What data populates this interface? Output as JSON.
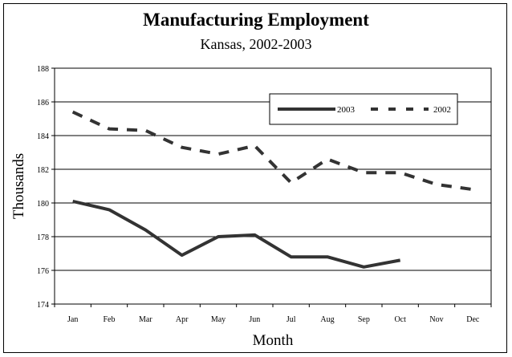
{
  "chart_data": {
    "type": "line",
    "title": "Manufacturing Employment",
    "subtitle": "Kansas, 2002-2003",
    "xlabel": "Month",
    "ylabel": "Thousands",
    "categories": [
      "Jan",
      "Feb",
      "Mar",
      "Apr",
      "May",
      "Jun",
      "Jul",
      "Aug",
      "Sep",
      "Oct",
      "Nov",
      "Dec"
    ],
    "ylim": [
      174,
      188
    ],
    "yticks": [
      174,
      176,
      178,
      180,
      182,
      184,
      186,
      188
    ],
    "grid": true,
    "legend_position": "top-right",
    "series": [
      {
        "name": "2003",
        "style": "solid",
        "color": "#333333",
        "values": [
          180.1,
          179.6,
          178.4,
          176.9,
          178.0,
          178.1,
          176.8,
          176.8,
          176.2,
          176.6,
          null,
          null
        ]
      },
      {
        "name": "2002",
        "style": "dashed",
        "color": "#333333",
        "values": [
          185.4,
          184.4,
          184.3,
          183.3,
          182.9,
          183.4,
          181.2,
          182.6,
          181.8,
          181.8,
          181.1,
          180.8
        ]
      }
    ]
  }
}
